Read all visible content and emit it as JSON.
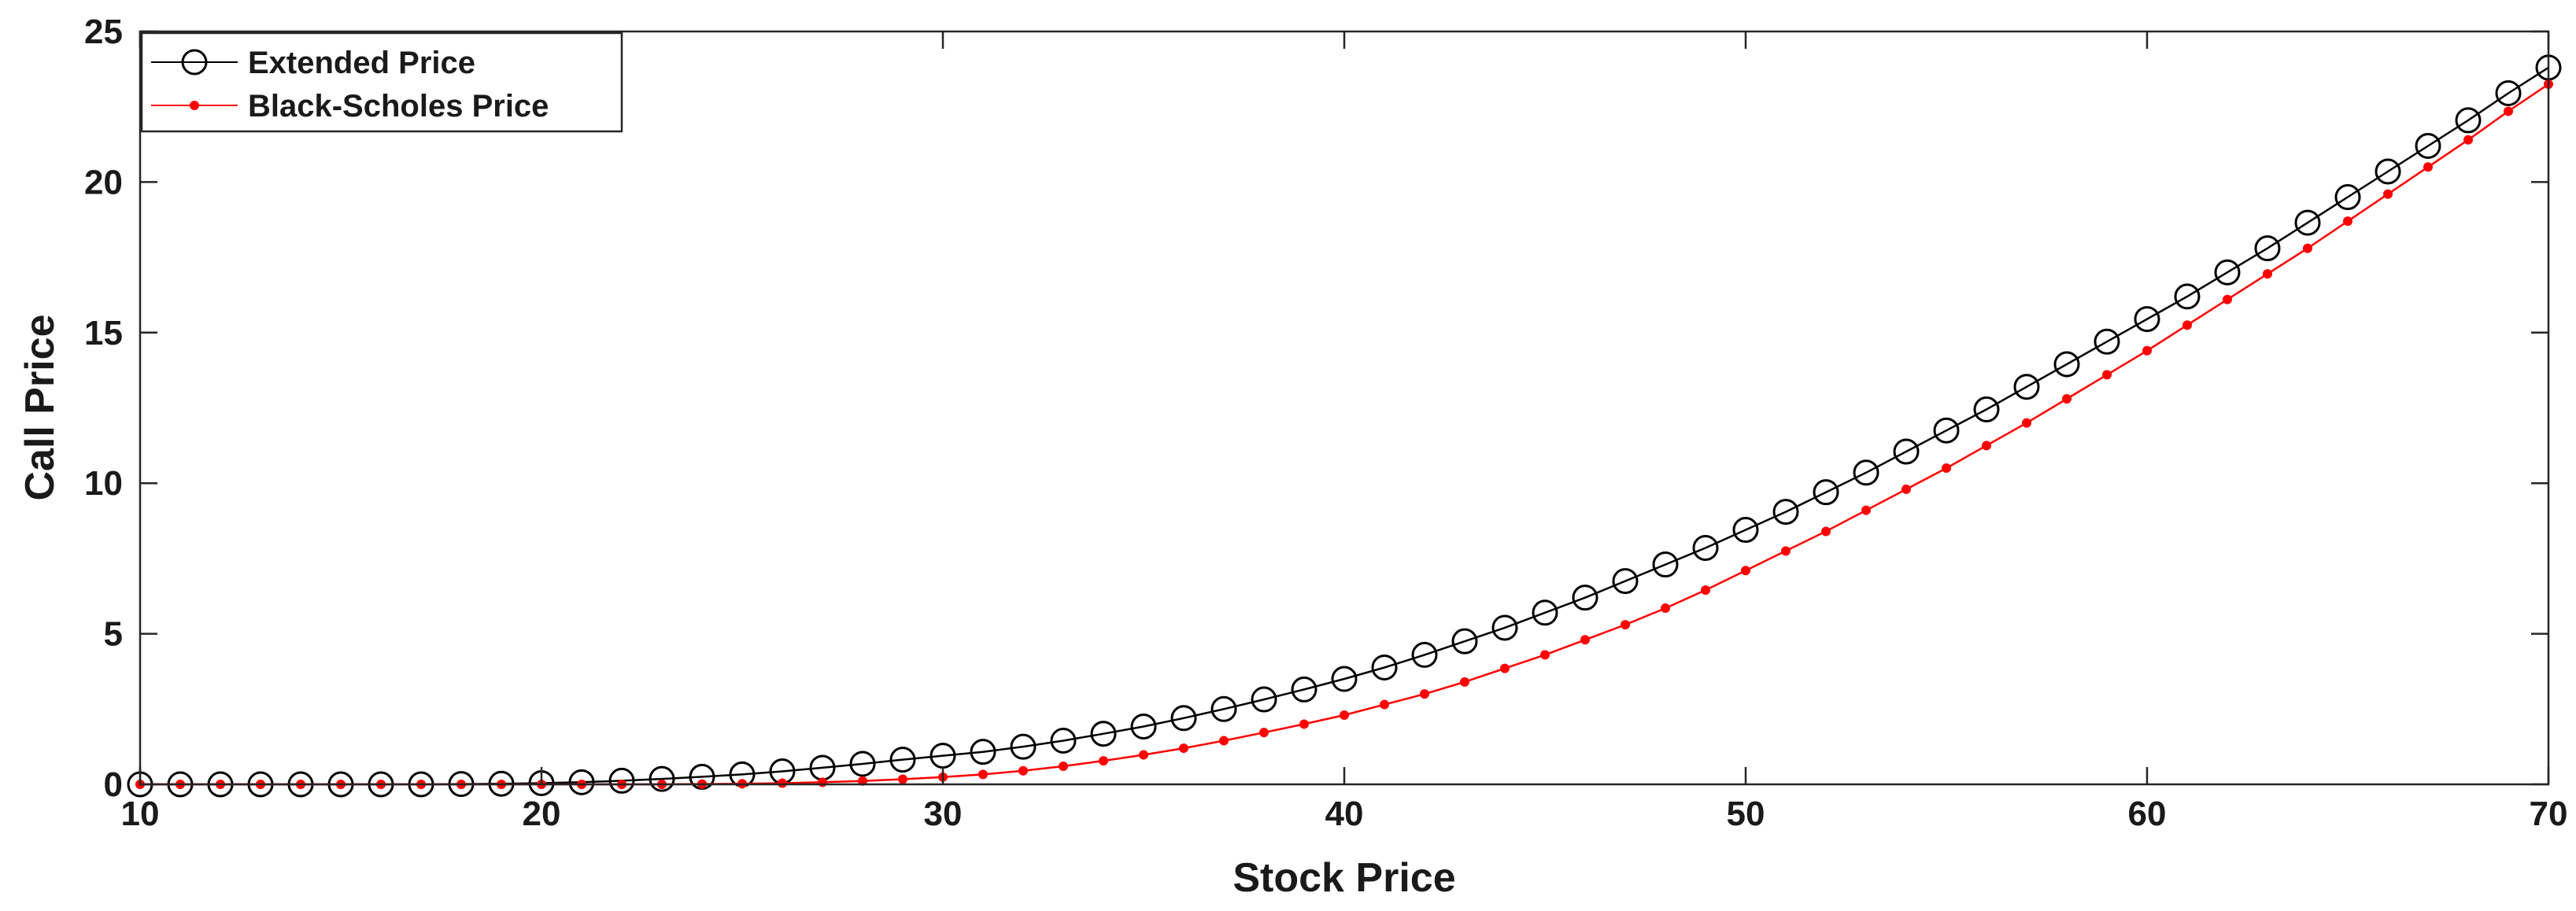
{
  "chart_data": {
    "type": "line",
    "xlabel": "Stock Price",
    "ylabel": "Call Price",
    "xlim": [
      10,
      70
    ],
    "ylim": [
      0,
      25
    ],
    "xticks": [
      10,
      20,
      30,
      40,
      50,
      60,
      70
    ],
    "yticks": [
      0,
      5,
      10,
      15,
      20,
      25
    ],
    "grid": false,
    "legend_position": "top-left",
    "x": [
      10,
      11,
      12,
      13,
      14,
      15,
      16,
      17,
      18,
      19,
      20,
      21,
      22,
      23,
      24,
      25,
      26,
      27,
      28,
      29,
      30,
      31,
      32,
      33,
      34,
      35,
      36,
      37,
      38,
      39,
      40,
      41,
      42,
      43,
      44,
      45,
      46,
      47,
      48,
      49,
      50,
      51,
      52,
      53,
      54,
      55,
      56,
      57,
      58,
      59,
      60,
      61,
      62,
      63,
      64,
      65,
      66,
      67,
      68,
      69,
      70
    ],
    "series": [
      {
        "name": "Extended Price",
        "color": "#000000",
        "marker": "open-circle",
        "values": [
          0,
          0,
          0,
          0,
          0,
          0,
          0,
          0,
          0.01,
          0.02,
          0.04,
          0.07,
          0.12,
          0.18,
          0.25,
          0.33,
          0.43,
          0.55,
          0.68,
          0.82,
          0.95,
          1.08,
          1.25,
          1.45,
          1.68,
          1.92,
          2.2,
          2.5,
          2.82,
          3.15,
          3.5,
          3.88,
          4.3,
          4.75,
          5.2,
          5.7,
          6.2,
          6.75,
          7.3,
          7.85,
          8.45,
          9.05,
          9.7,
          10.35,
          11.05,
          11.75,
          12.45,
          13.2,
          13.95,
          14.7,
          15.45,
          16.2,
          17.0,
          17.8,
          18.65,
          19.5,
          20.35,
          21.2,
          22.05,
          22.95,
          23.8
        ]
      },
      {
        "name": "Black-Scholes Price",
        "color": "#ff0000",
        "marker": "dot",
        "values": [
          0,
          0,
          0,
          0,
          0,
          0,
          0,
          0,
          0,
          0,
          0,
          0,
          0,
          0,
          0.01,
          0.02,
          0.04,
          0.07,
          0.11,
          0.17,
          0.24,
          0.33,
          0.45,
          0.6,
          0.78,
          0.98,
          1.2,
          1.45,
          1.72,
          2.0,
          2.3,
          2.65,
          3.0,
          3.4,
          3.85,
          4.3,
          4.8,
          5.3,
          5.85,
          6.45,
          7.1,
          7.75,
          8.4,
          9.1,
          9.8,
          10.5,
          11.25,
          12.0,
          12.8,
          13.6,
          14.4,
          15.25,
          16.1,
          16.95,
          17.8,
          18.7,
          19.6,
          20.5,
          21.4,
          22.35,
          23.25
        ]
      }
    ]
  }
}
